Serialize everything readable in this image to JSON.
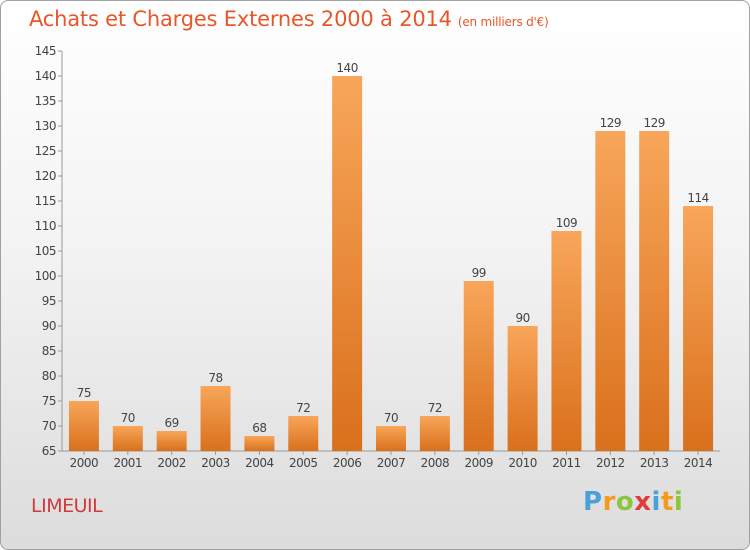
{
  "header": {
    "title": "Achats et Charges Externes 2000 à 2014",
    "subtitle": "(en milliers d'€)"
  },
  "footer": {
    "location": "LIMEUIL",
    "brand_letters": [
      "P",
      "r",
      "o",
      "x",
      "i",
      "t",
      "i"
    ]
  },
  "colors": {
    "title": "#e8572a",
    "location": "#d23a3a",
    "bar_top": "#f8a65a",
    "bar_bottom": "#d9701c",
    "brand": [
      "#4aa0d8",
      "#f29b1d",
      "#8cc63f",
      "#e23b3b",
      "#4aa0d8",
      "#f29b1d",
      "#8cc63f"
    ]
  },
  "chart_data": {
    "type": "bar",
    "categories": [
      "2000",
      "2001",
      "2002",
      "2003",
      "2004",
      "2005",
      "2006",
      "2007",
      "2008",
      "2009",
      "2010",
      "2011",
      "2012",
      "2013",
      "2014"
    ],
    "values": [
      75,
      70,
      69,
      78,
      68,
      72,
      140,
      70,
      72,
      99,
      90,
      109,
      129,
      129,
      114
    ],
    "ylim": [
      65,
      145
    ],
    "yticks": [
      65,
      70,
      75,
      80,
      85,
      90,
      95,
      100,
      105,
      110,
      115,
      120,
      125,
      130,
      135,
      140,
      145
    ],
    "grid": false,
    "data_labels": true
  }
}
